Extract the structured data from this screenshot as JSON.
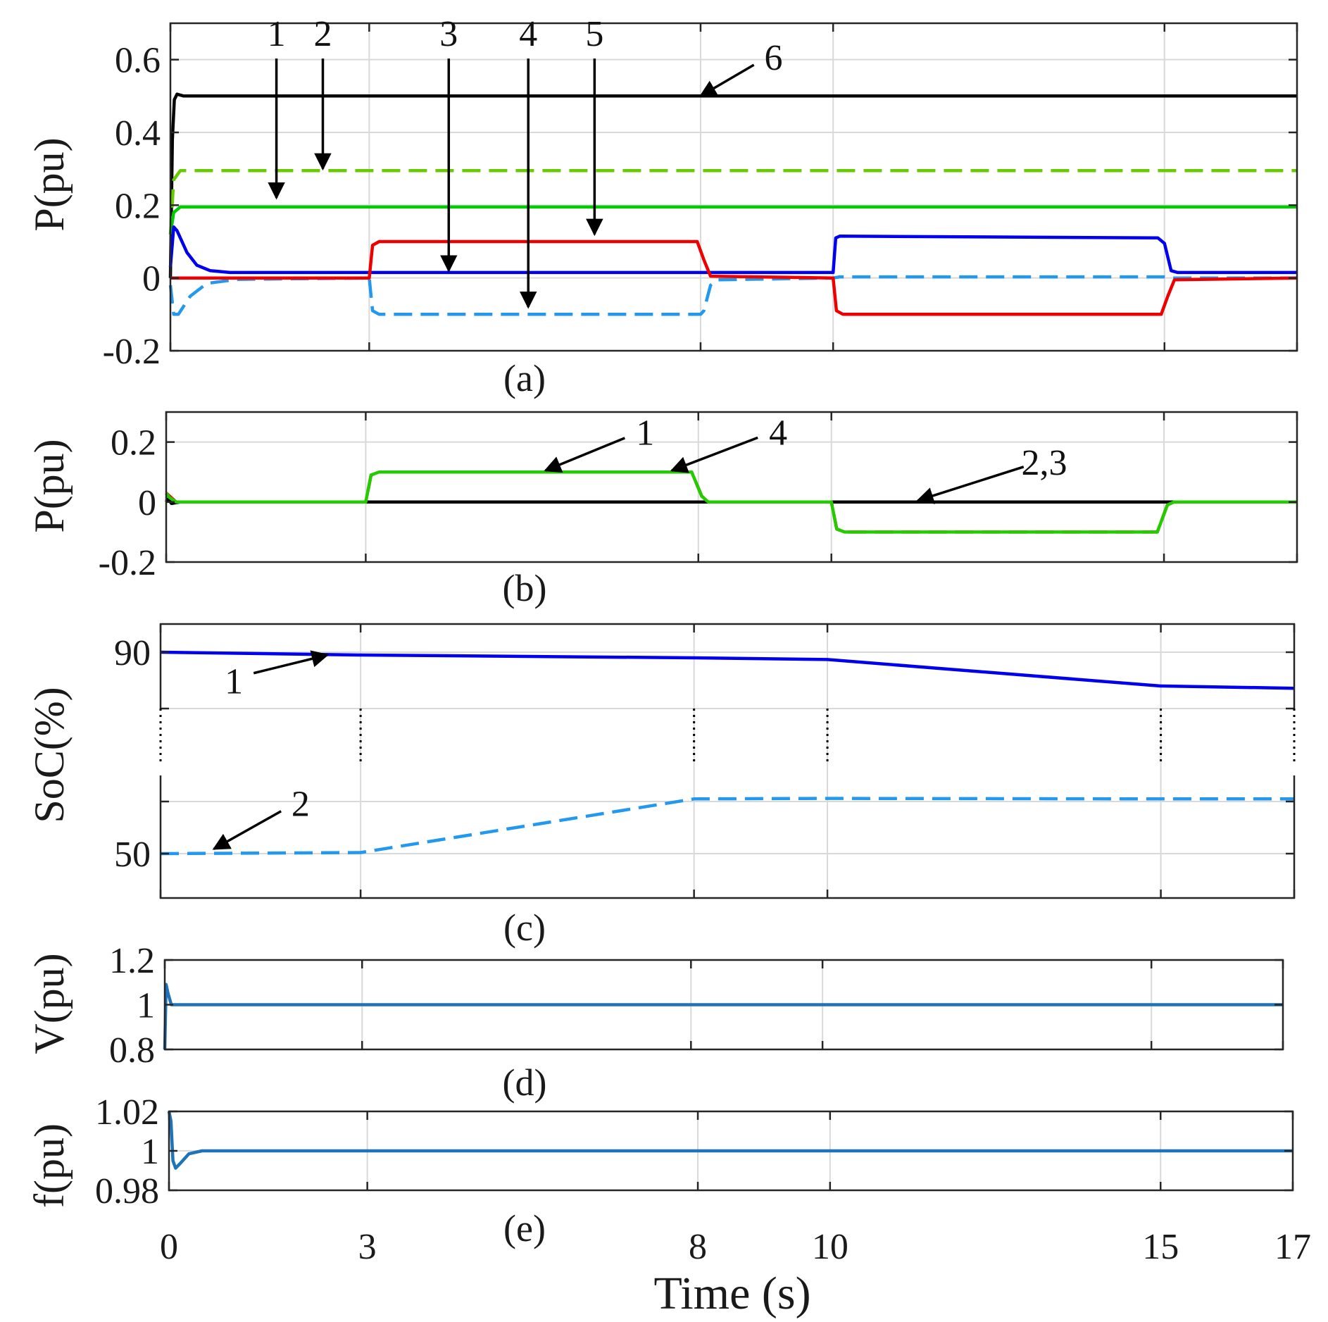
{
  "chart_data": {
    "time_ticks": [
      0,
      3,
      8,
      10,
      15,
      17
    ],
    "xlabel": "Time (s)",
    "xlim": [
      0,
      17
    ],
    "panels": [
      {
        "id": "a",
        "type": "line",
        "caption": "(a)",
        "ylabel": "P(pu)",
        "ylim": [
          -0.2,
          0.7
        ],
        "yticks": [
          -0.2,
          0,
          0.2,
          0.4,
          0.6
        ],
        "ytick_labels": [
          "-0.2",
          "0",
          "0.2",
          "0.4",
          "0.6"
        ],
        "series": [
          {
            "name": "6",
            "color": "#000000",
            "style": "solid",
            "points": [
              [
                0,
                0
              ],
              [
                0.03,
                0.38
              ],
              [
                0.06,
                0.49
              ],
              [
                0.1,
                0.505
              ],
              [
                0.2,
                0.5
              ],
              [
                17,
                0.5
              ]
            ]
          },
          {
            "name": "2",
            "color": "#66cc00",
            "style": "dashed",
            "points": [
              [
                0,
                0.12
              ],
              [
                0.05,
                0.27
              ],
              [
                0.15,
                0.295
              ],
              [
                17,
                0.295
              ]
            ]
          },
          {
            "name": "1",
            "color": "#00cc00",
            "style": "solid",
            "points": [
              [
                0,
                0.12
              ],
              [
                0.05,
                0.18
              ],
              [
                0.15,
                0.195
              ],
              [
                17,
                0.195
              ]
            ]
          },
          {
            "name": "3",
            "color": "#0000ee",
            "style": "solid",
            "points": [
              [
                0,
                0.03
              ],
              [
                0.05,
                0.14
              ],
              [
                0.1,
                0.13
              ],
              [
                0.25,
                0.07
              ],
              [
                0.4,
                0.035
              ],
              [
                0.6,
                0.02
              ],
              [
                0.9,
                0.015
              ],
              [
                3,
                0.015
              ],
              [
                8,
                0.015
              ],
              [
                10,
                0.015
              ],
              [
                10.04,
                0.11
              ],
              [
                10.1,
                0.115
              ],
              [
                14.9,
                0.11
              ],
              [
                15,
                0.095
              ],
              [
                15.1,
                0.02
              ],
              [
                15.2,
                0.015
              ],
              [
                17,
                0.015
              ]
            ]
          },
          {
            "name": "4",
            "color": "#2299ee",
            "style": "dashed",
            "points": [
              [
                0,
                -0.02
              ],
              [
                0.05,
                -0.1
              ],
              [
                0.12,
                -0.1
              ],
              [
                0.3,
                -0.05
              ],
              [
                0.55,
                -0.015
              ],
              [
                1,
                -0.004
              ],
              [
                3,
                0
              ],
              [
                3.05,
                -0.09
              ],
              [
                3.15,
                -0.1
              ],
              [
                8,
                -0.1
              ],
              [
                8.05,
                -0.09
              ],
              [
                8.15,
                -0.02
              ],
              [
                8.25,
                -0.005
              ],
              [
                10,
                0
              ],
              [
                10.1,
                0.003
              ],
              [
                15,
                0.003
              ],
              [
                15.12,
                0
              ],
              [
                17,
                0
              ]
            ]
          },
          {
            "name": "5",
            "color": "#ee0000",
            "style": "solid",
            "points": [
              [
                0,
                0
              ],
              [
                3,
                0
              ],
              [
                3.05,
                0.09
              ],
              [
                3.15,
                0.1
              ],
              [
                7.95,
                0.1
              ],
              [
                8.05,
                0.05
              ],
              [
                8.15,
                0.005
              ],
              [
                10,
                0
              ],
              [
                10.05,
                -0.09
              ],
              [
                10.15,
                -0.1
              ],
              [
                14.95,
                -0.1
              ],
              [
                15.05,
                -0.05
              ],
              [
                15.15,
                -0.005
              ],
              [
                17,
                0
              ]
            ]
          }
        ],
        "annotations": [
          {
            "label": "1",
            "label_xy": [
              1.6,
              0.63
            ],
            "arrow_to": [
              1.6,
              0.22
            ]
          },
          {
            "label": "2",
            "label_xy": [
              2.3,
              0.63
            ],
            "arrow_to": [
              2.3,
              0.3
            ]
          },
          {
            "label": "3",
            "label_xy": [
              4.2,
              0.63
            ],
            "arrow_to": [
              4.2,
              0.02
            ]
          },
          {
            "label": "4",
            "label_xy": [
              5.4,
              0.63
            ],
            "arrow_to": [
              5.4,
              -0.08
            ]
          },
          {
            "label": "5",
            "label_xy": [
              6.4,
              0.63
            ],
            "arrow_to": [
              6.4,
              0.12
            ]
          },
          {
            "label": "6",
            "label_xy": [
              9.1,
              0.58
            ],
            "arrow_to": [
              8.0,
              0.5
            ]
          }
        ]
      },
      {
        "id": "b",
        "type": "line",
        "caption": "(b)",
        "ylabel": "P(pu)",
        "ylim": [
          -0.2,
          0.3
        ],
        "yticks": [
          -0.2,
          0,
          0.2
        ],
        "ytick_labels": [
          "-0.2",
          "0",
          "0.2"
        ],
        "series": [
          {
            "name": "2,3",
            "color": "#000000",
            "style": "solid",
            "points": [
              [
                0,
                0
              ],
              [
                0.03,
                0.01
              ],
              [
                0.08,
                -0.005
              ],
              [
                0.2,
                0
              ],
              [
                17,
                0
              ]
            ]
          },
          {
            "name": "1",
            "color": "#ee0000",
            "style": "dashed",
            "points": [
              [
                0,
                0.03
              ],
              [
                0.05,
                0.02
              ],
              [
                0.15,
                0
              ],
              [
                3,
                0
              ],
              [
                3.08,
                0.09
              ],
              [
                3.2,
                0.1
              ],
              [
                7.9,
                0.1
              ],
              [
                8.05,
                0.02
              ],
              [
                8.15,
                0
              ],
              [
                10,
                0
              ],
              [
                10.08,
                -0.09
              ],
              [
                10.2,
                -0.1
              ],
              [
                14.9,
                -0.1
              ],
              [
                15.05,
                -0.01
              ],
              [
                15.15,
                0
              ],
              [
                17,
                0
              ]
            ]
          },
          {
            "name": "4",
            "color": "#22cc00",
            "style": "solid",
            "points": [
              [
                0,
                0.03
              ],
              [
                0.05,
                0.015
              ],
              [
                0.15,
                0
              ],
              [
                3,
                0
              ],
              [
                3.08,
                0.09
              ],
              [
                3.2,
                0.1
              ],
              [
                7.9,
                0.1
              ],
              [
                8.05,
                0.02
              ],
              [
                8.15,
                0
              ],
              [
                10,
                0
              ],
              [
                10.08,
                -0.09
              ],
              [
                10.2,
                -0.1
              ],
              [
                14.9,
                -0.1
              ],
              [
                15.05,
                -0.01
              ],
              [
                15.15,
                0
              ],
              [
                17,
                0
              ]
            ]
          }
        ],
        "annotations": [
          {
            "label": "1",
            "label_xy": [
              7.2,
              0.2
            ],
            "arrow_to": [
              5.7,
              0.105
            ]
          },
          {
            "label": "4",
            "label_xy": [
              9.2,
              0.2
            ],
            "arrow_to": [
              7.6,
              0.105
            ]
          },
          {
            "label": "2,3",
            "label_xy": [
              13.2,
              0.1
            ],
            "arrow_to": [
              11.3,
              0.005
            ]
          }
        ]
      },
      {
        "id": "c",
        "type": "line",
        "caption": "(c)",
        "ylabel": "SoC(%)",
        "ylim": [
          40,
          95
        ],
        "yticks": [
          50,
          60,
          80,
          90
        ],
        "ytick_labels": [
          "50",
          "",
          "",
          "90"
        ],
        "axis_break": true,
        "series": [
          {
            "name": "1",
            "color": "#0000ee",
            "style": "solid",
            "points": [
              [
                0,
                90
              ],
              [
                3,
                89.5
              ],
              [
                8,
                89
              ],
              [
                10,
                88.7
              ],
              [
                15,
                84
              ],
              [
                17,
                83.6
              ]
            ]
          },
          {
            "name": "2",
            "color": "#2299ee",
            "style": "dashed",
            "points": [
              [
                0,
                50
              ],
              [
                3,
                50.2
              ],
              [
                8,
                60.5
              ],
              [
                10,
                60.6
              ],
              [
                15,
                60.5
              ],
              [
                17,
                60.5
              ]
            ]
          }
        ],
        "annotations": [
          {
            "label": "1",
            "label_xy": [
              1.1,
              83.2
            ],
            "arrow_to": [
              2.5,
              89.5
            ]
          },
          {
            "label": "2",
            "label_xy": [
              2.1,
              57.8
            ],
            "arrow_to": [
              0.8,
              50.9
            ]
          }
        ]
      },
      {
        "id": "d",
        "type": "line",
        "caption": "(d)",
        "ylabel": "V(pu)",
        "ylim": [
          0.8,
          1.2
        ],
        "yticks": [
          0.8,
          1,
          1.2
        ],
        "ytick_labels": [
          "0.8",
          "1",
          "1.2"
        ],
        "series": [
          {
            "name": "V",
            "color": "#1f73b8",
            "style": "solid",
            "points": [
              [
                0,
                0.8
              ],
              [
                0.02,
                1.09
              ],
              [
                0.05,
                1.05
              ],
              [
                0.1,
                1.0
              ],
              [
                17,
                1.0
              ]
            ]
          }
        ],
        "annotations": []
      },
      {
        "id": "e",
        "type": "line",
        "caption": "(e)",
        "ylabel": "f(pu)",
        "ylim": [
          0.98,
          1.02
        ],
        "yticks": [
          0.98,
          1,
          1.02
        ],
        "ytick_labels": [
          "0.98",
          "1",
          "1.02"
        ],
        "series": [
          {
            "name": "f",
            "color": "#1f73b8",
            "style": "solid",
            "points": [
              [
                0,
                1.02
              ],
              [
                0.03,
                1.015
              ],
              [
                0.06,
                0.995
              ],
              [
                0.1,
                0.9912
              ],
              [
                0.18,
                0.994
              ],
              [
                0.3,
                0.9985
              ],
              [
                0.5,
                1.0
              ],
              [
                17,
                1.0
              ]
            ]
          }
        ],
        "annotations": []
      }
    ]
  }
}
